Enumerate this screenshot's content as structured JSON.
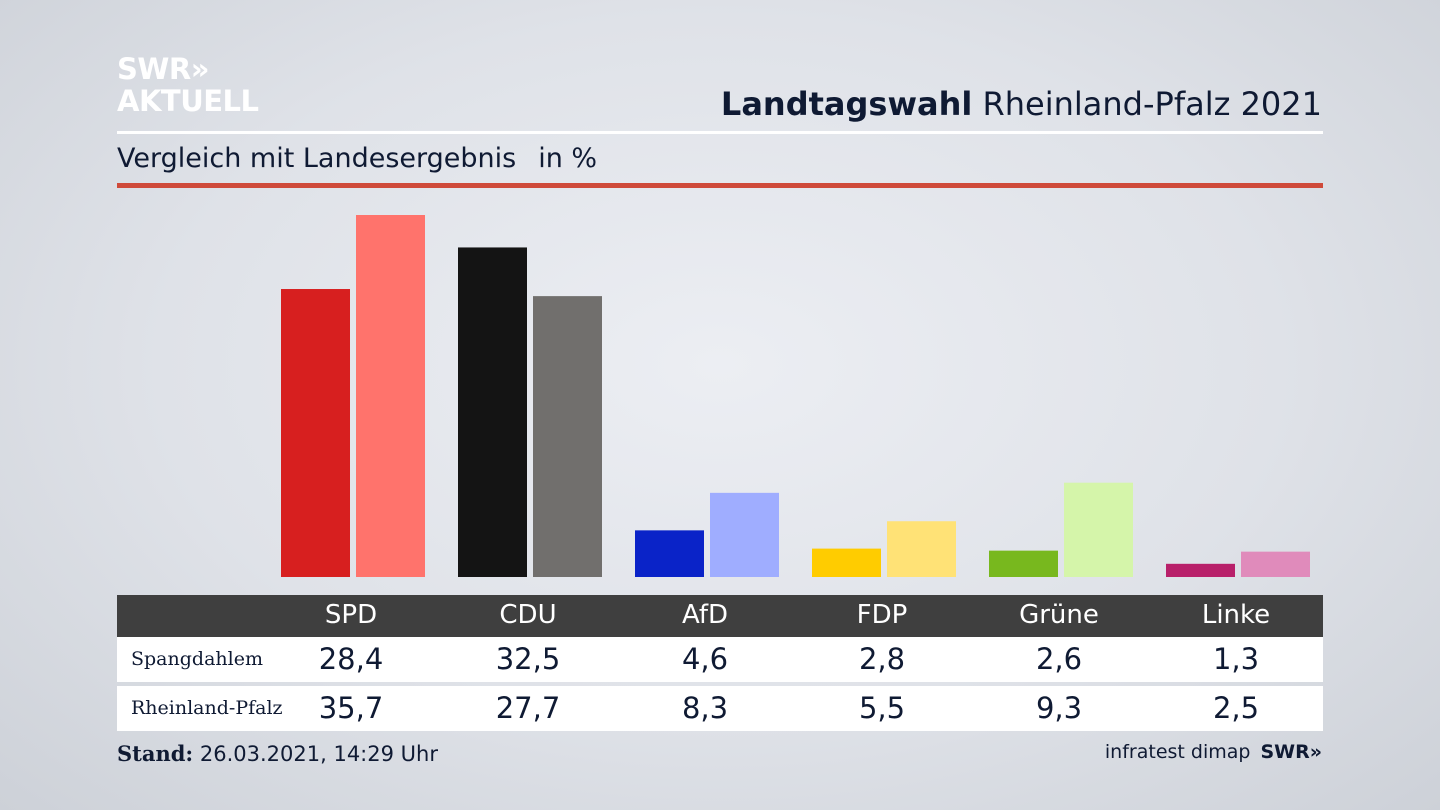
{
  "logo": {
    "line1": "SWR»",
    "line2": "AKTUELL"
  },
  "header": {
    "title_bold": "Landtagswahl",
    "title_rest": "Rheinland-Pfalz 2021"
  },
  "subtitle": {
    "text": "Vergleich mit Landesergebnis",
    "unit": "in %"
  },
  "colors": {
    "accent_rule": "#cf4a3a",
    "table_header": "#3f3f3f"
  },
  "chart_data": {
    "type": "bar",
    "categories": [
      "SPD",
      "CDU",
      "AfD",
      "FDP",
      "Grüne",
      "Linke"
    ],
    "series": [
      {
        "name": "Spangdahlem",
        "values": [
          28.4,
          32.5,
          4.6,
          2.8,
          2.6,
          1.3
        ],
        "colors": [
          "#d71f1f",
          "#141414",
          "#0a23c8",
          "#ffcc00",
          "#78b81e",
          "#b8206a"
        ]
      },
      {
        "name": "Rheinland-Pfalz",
        "values": [
          35.7,
          27.7,
          8.3,
          5.5,
          9.3,
          2.5
        ],
        "colors": [
          "#ff736c",
          "#716f6d",
          "#9fadff",
          "#ffe276",
          "#d5f5aa",
          "#e08bbb"
        ]
      }
    ],
    "ylim": [
      0,
      35.7
    ],
    "grid": false,
    "legend": "table-below"
  },
  "table": {
    "headers": [
      "SPD",
      "CDU",
      "AfD",
      "FDP",
      "Grüne",
      "Linke"
    ],
    "rows": [
      {
        "label": "Spangdahlem",
        "values": [
          "28,4",
          "32,5",
          "4,6",
          "2,8",
          "2,6",
          "1,3"
        ]
      },
      {
        "label": "Rheinland-Pfalz",
        "values": [
          "35,7",
          "27,7",
          "8,3",
          "5,5",
          "9,3",
          "2,5"
        ]
      }
    ]
  },
  "footer": {
    "stand_label": "Stand:",
    "stand_value": "26.03.2021, 14:29 Uhr",
    "source": "infratest dimap",
    "brand": "SWR»"
  }
}
